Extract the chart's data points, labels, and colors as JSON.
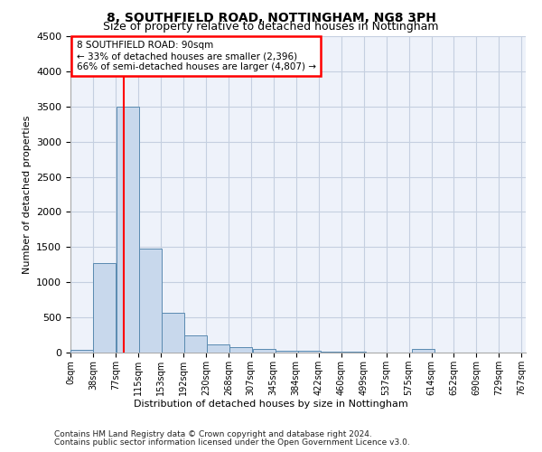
{
  "title1": "8, SOUTHFIELD ROAD, NOTTINGHAM, NG8 3PH",
  "title2": "Size of property relative to detached houses in Nottingham",
  "xlabel": "Distribution of detached houses by size in Nottingham",
  "ylabel": "Number of detached properties",
  "footnote1": "Contains HM Land Registry data © Crown copyright and database right 2024.",
  "footnote2": "Contains public sector information licensed under the Open Government Licence v3.0.",
  "bar_left_edges": [
    0,
    38,
    77,
    115,
    153,
    192,
    230,
    268,
    307,
    345,
    384,
    422,
    460,
    499,
    537,
    575,
    614,
    652,
    690,
    729
  ],
  "bar_heights": [
    40,
    1270,
    3500,
    1480,
    570,
    240,
    115,
    80,
    55,
    30,
    20,
    15,
    10,
    0,
    0,
    50,
    0,
    0,
    0,
    0
  ],
  "bin_width": 38,
  "bar_color": "#c8d8ec",
  "bar_edge_color": "#5a8ab0",
  "grid_color": "#c5cfe0",
  "background_color": "#eef2fa",
  "red_line_x": 90,
  "annotation_line1": "8 SOUTHFIELD ROAD: 90sqm",
  "annotation_line2": "← 33% of detached houses are smaller (2,396)",
  "annotation_line3": "66% of semi-detached houses are larger (4,807) →",
  "ylim": [
    0,
    4500
  ],
  "yticks": [
    0,
    500,
    1000,
    1500,
    2000,
    2500,
    3000,
    3500,
    4000,
    4500
  ],
  "xtick_labels": [
    "0sqm",
    "38sqm",
    "77sqm",
    "115sqm",
    "153sqm",
    "192sqm",
    "230sqm",
    "268sqm",
    "307sqm",
    "345sqm",
    "384sqm",
    "422sqm",
    "460sqm",
    "499sqm",
    "537sqm",
    "575sqm",
    "614sqm",
    "652sqm",
    "690sqm",
    "729sqm",
    "767sqm"
  ],
  "title1_fontsize": 10,
  "title2_fontsize": 9,
  "ylabel_fontsize": 8,
  "xlabel_fontsize": 8,
  "tick_fontsize": 8,
  "xtick_fontsize": 7,
  "annot_fontsize": 7.5,
  "footnote_fontsize": 6.5
}
